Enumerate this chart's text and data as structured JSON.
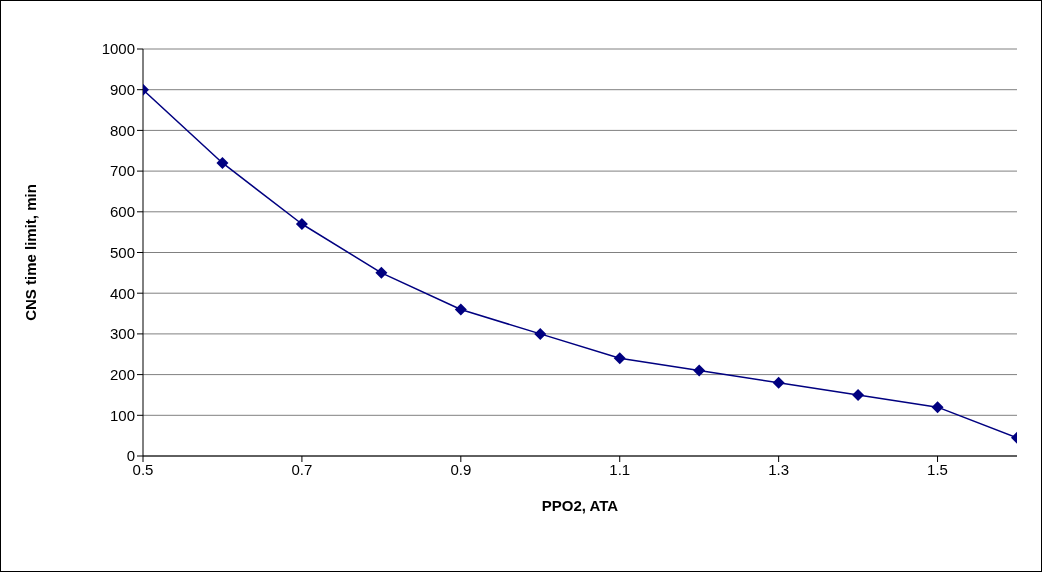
{
  "chart_data": {
    "type": "line",
    "xlabel": "PPO2, ATA",
    "ylabel": "CNS time limit, min",
    "x": [
      0.5,
      0.6,
      0.7,
      0.8,
      0.9,
      1.0,
      1.1,
      1.2,
      1.3,
      1.4,
      1.5,
      1.6
    ],
    "series": [
      {
        "color": "#000080",
        "values": [
          900,
          720,
          570,
          450,
          360,
          300,
          240,
          210,
          180,
          150,
          120,
          45
        ]
      }
    ],
    "xlim": [
      0.5,
      1.6
    ],
    "xticks": [
      0.5,
      0.7,
      0.9,
      1.1,
      1.3,
      1.5
    ],
    "ylim": [
      0,
      1000
    ],
    "yticks": [
      0,
      100,
      200,
      300,
      400,
      500,
      600,
      700,
      800,
      900,
      1000
    ],
    "grid": "y",
    "marker": "diamond",
    "line_style": "solid"
  }
}
